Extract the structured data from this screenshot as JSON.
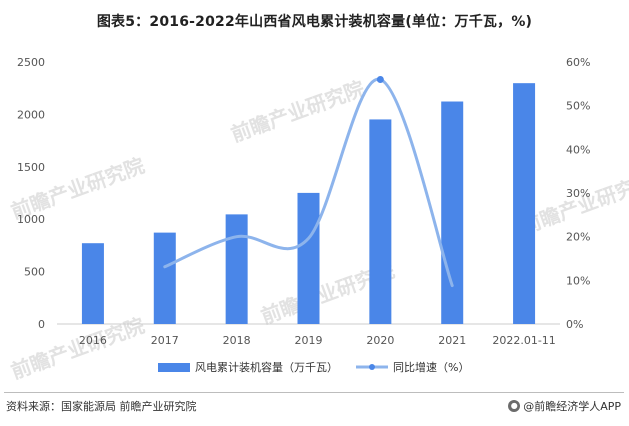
{
  "header": {
    "title": "图表5：2016-2022年山西省风电累计装机容量(单位：万千瓦，%)"
  },
  "footer": {
    "source": "资料来源：国家能源局 前瞻产业研究院",
    "brand": "@前瞻经济学人APP",
    "brand_icon": "qianzhan-logo-icon"
  },
  "watermark": {
    "text": "前瞻产业研究院"
  },
  "colors": {
    "bar": "#4a86e8",
    "line": "#8db4ec",
    "line_point": "#4a86e8",
    "axis": "#cccccc",
    "text": "#555555"
  },
  "chart_data": {
    "type": "bar",
    "categories": [
      "2016",
      "2017",
      "2018",
      "2019",
      "2020",
      "2021",
      "2022.01-11"
    ],
    "series": [
      {
        "name": "风电累计装机容量（万千瓦）",
        "type": "bar",
        "axis": "left",
        "values": [
          771,
          872,
          1046,
          1251,
          1952,
          2123,
          2298
        ]
      },
      {
        "name": "同比增速（%）",
        "type": "line",
        "axis": "right",
        "values": [
          null,
          13.1,
          20.0,
          19.6,
          56.0,
          8.8,
          null
        ]
      }
    ],
    "y_left": {
      "ylim": [
        0,
        2500
      ],
      "ticks": [
        "0",
        "500",
        "1000",
        "1500",
        "2000",
        "2500"
      ]
    },
    "y_right": {
      "ylim": [
        0,
        60
      ],
      "ticks": [
        "0%",
        "10%",
        "20%",
        "30%",
        "40%",
        "50%",
        "60%"
      ]
    },
    "title": "图表5：2016-2022年山西省风电累计装机容量(单位：万千瓦，%)",
    "legend_position": "bottom",
    "grid": false
  }
}
